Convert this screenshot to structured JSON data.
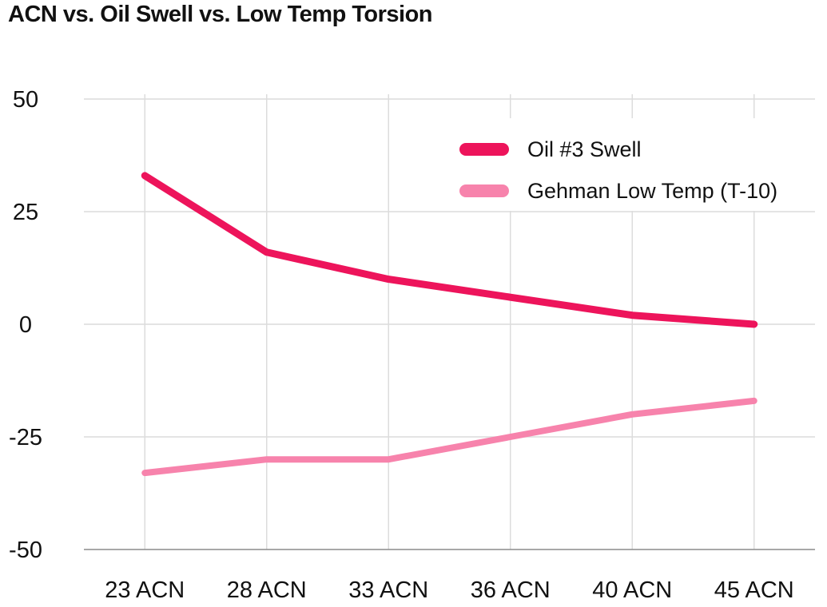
{
  "title": "ACN vs. Oil Swell vs. Low Temp Torsion",
  "chart_data": {
    "type": "line",
    "title": "ACN vs. Oil Swell vs. Low Temp Torsion",
    "categories": [
      "23 ACN",
      "28 ACN",
      "33 ACN",
      "36 ACN",
      "40 ACN",
      "45 ACN"
    ],
    "series": [
      {
        "name": "Oil #3 Swell",
        "values": [
          33,
          16,
          10,
          6,
          2,
          0
        ],
        "color": "#ED145B",
        "width": 9
      },
      {
        "name": "Gehman Low Temp (T-10)",
        "values": [
          -33,
          -30,
          -30,
          -25,
          -20,
          -17
        ],
        "color": "#F783AC",
        "width": 8
      }
    ],
    "xlabel": "",
    "ylabel": "",
    "ylim": [
      -50,
      50
    ],
    "yticks": [
      50,
      25,
      0,
      -25,
      -50
    ],
    "grid": true,
    "legend_position": "top-right",
    "colors": {
      "grid": "#DCDCDC",
      "axis": "#8C8C8C",
      "text": "#111111",
      "background": "#FFFFFF"
    }
  }
}
